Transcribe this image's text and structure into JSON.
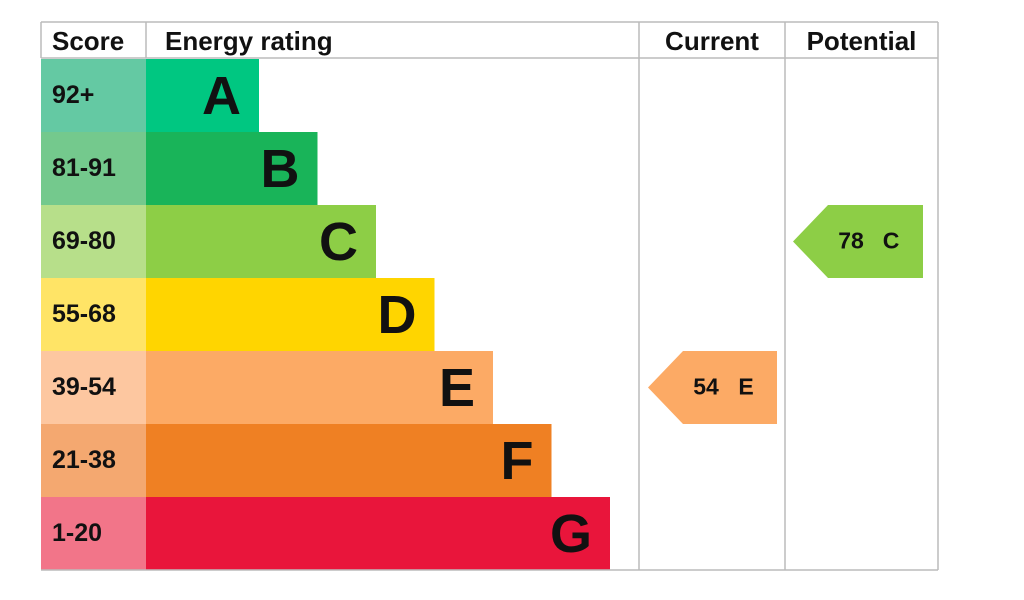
{
  "header": {
    "score": "Score",
    "rating": "Energy rating",
    "current": "Current",
    "potential": "Potential"
  },
  "bands": [
    {
      "score": "92+",
      "letter": "A",
      "color": "#00c781",
      "score_color": "#64c9a3"
    },
    {
      "score": "81-91",
      "letter": "B",
      "color": "#19b459",
      "score_color": "#74c98d"
    },
    {
      "score": "69-80",
      "letter": "C",
      "color": "#8dce46",
      "score_color": "#b7df8a"
    },
    {
      "score": "55-68",
      "letter": "D",
      "color": "#ffd500",
      "score_color": "#ffe466"
    },
    {
      "score": "39-54",
      "letter": "E",
      "color": "#fcaa65",
      "score_color": "#fdc7a0"
    },
    {
      "score": "21-38",
      "letter": "F",
      "color": "#ef8023",
      "score_color": "#f4a870"
    },
    {
      "score": "1-20",
      "letter": "G",
      "color": "#e9153b",
      "score_color": "#f27589"
    }
  ],
  "current": {
    "value": 54,
    "letter": "E"
  },
  "potential": {
    "value": 78,
    "letter": "C"
  }
}
